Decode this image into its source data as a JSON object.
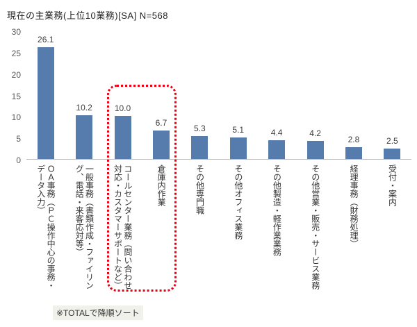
{
  "chart_data": {
    "type": "bar",
    "title": "現在の主業務(上位10業務)[SA]  N=568",
    "categories": [
      "ＯＡ事務（ＰＣ操作中心の事務・データ入力）",
      "一般事務（書類作成・ファイリング、電話・来客応対等）",
      "コールセンター業務（問い合わせ対応・カスタマーサポートなど）",
      "倉庫内作業",
      "その他専門職",
      "その他オフィス業務",
      "その他製造・軽作業業務",
      "その他営業・販売・サービス業務",
      "経理事務（財務処理）",
      "受付・案内"
    ],
    "values": [
      26.1,
      10.2,
      10.0,
      6.7,
      5.3,
      5.1,
      4.4,
      4.2,
      2.8,
      2.5
    ],
    "xlabel": "",
    "ylabel": "",
    "ylim": [
      0,
      30
    ],
    "yticks": [
      0,
      5,
      10,
      15,
      20,
      25,
      30
    ],
    "grid": false,
    "legend": false,
    "bar_color": "#567cae",
    "value_label_color": "#3d3d3d",
    "highlight": {
      "indices": [
        2,
        3
      ],
      "color": "#e60012",
      "style": "dotted"
    },
    "note": "※TOTALで降順ソート"
  }
}
